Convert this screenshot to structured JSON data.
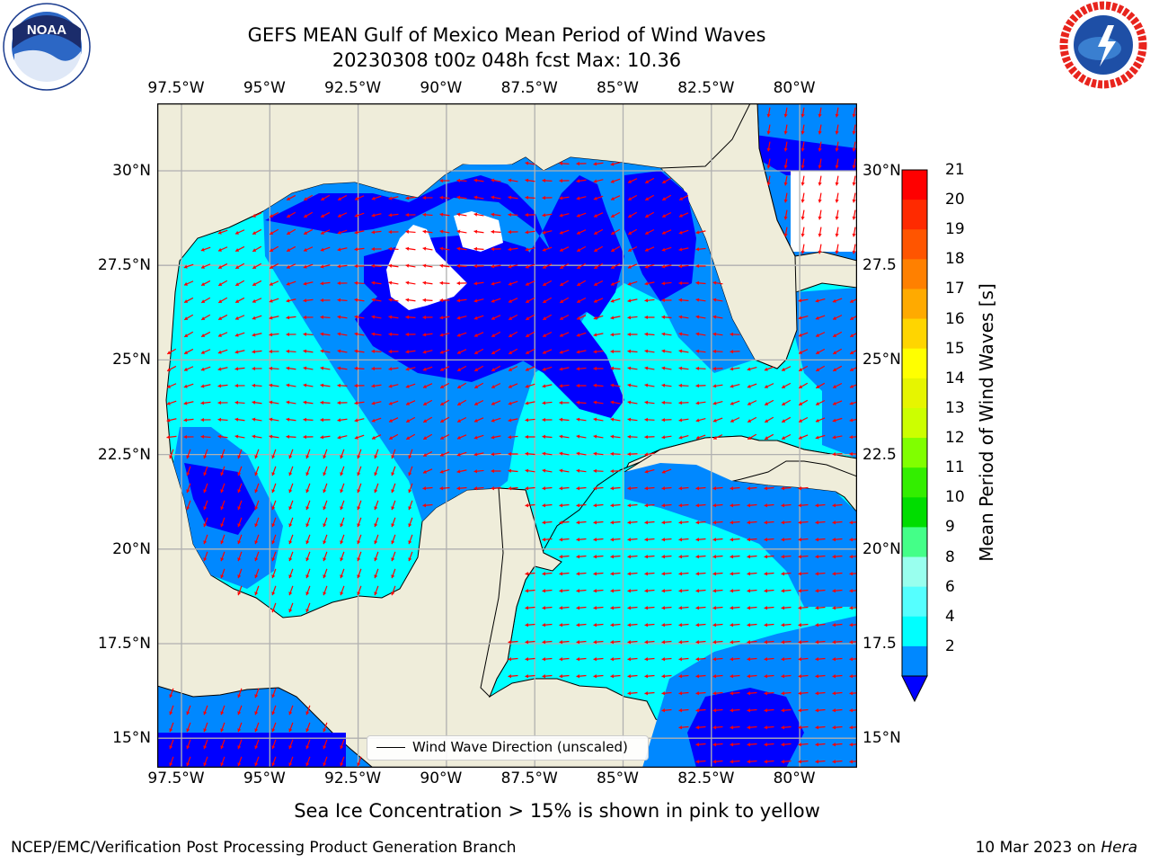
{
  "header": {
    "title_line1": "GEFS MEAN Gulf of Mexico Mean Period of Wind Waves",
    "title_line2": "20230308 t00z 048h fcst   Max: 10.36"
  },
  "axes": {
    "lon_ticks": [
      "97.5°W",
      "95°W",
      "92.5°W",
      "90°W",
      "87.5°W",
      "85°W",
      "82.5°W",
      "80°W"
    ],
    "lat_ticks_left": [
      "30°N",
      "27.5°N",
      "25°N",
      "22.5°N",
      "20°N",
      "17.5°N",
      "15°N"
    ],
    "lat_ticks_right": [
      "30°N",
      "27.5",
      "25°N",
      "22.5",
      "20°N",
      "17.5",
      "15°N"
    ]
  },
  "colorbar": {
    "label": "Mean Period of Wind Waves [s]",
    "ticks": [
      "21",
      "20",
      "19",
      "18",
      "17",
      "16",
      "15",
      "14",
      "13",
      "12",
      "11",
      "10",
      "9",
      "8",
      "6",
      "4",
      "2"
    ],
    "colors": [
      "#ff0000",
      "#ff2a00",
      "#ff5500",
      "#ff8000",
      "#ffaa00",
      "#ffd500",
      "#ffff00",
      "#e6f500",
      "#ccff00",
      "#80ff00",
      "#33ee00",
      "#00dd00",
      "#44ff88",
      "#99ffee",
      "#55ffff",
      "#00ffff",
      "#0088ff"
    ],
    "under_color": "#0000ff"
  },
  "legend": {
    "label": "Wind Wave Direction (unscaled)"
  },
  "note": "Sea Ice Concentration > 15% is shown in pink to yellow",
  "footer": {
    "left": "NCEP/EMC/Verification Post Processing Product Generation Branch",
    "right_prefix": "10 Mar 2023 on ",
    "right_host": "Hera"
  },
  "logos": {
    "left": "NOAA",
    "right": "NATIONAL WEATHER SERVICE"
  },
  "map": {
    "land_color": "#efedda",
    "grid_color": "#b0b0b0",
    "arrow_color": "#ff0000",
    "period_colors": {
      "2-4": "#0088ff",
      "4-6": "#00ffff",
      "6-8": "#55ffff",
      "below_2": "#0000ff"
    }
  }
}
